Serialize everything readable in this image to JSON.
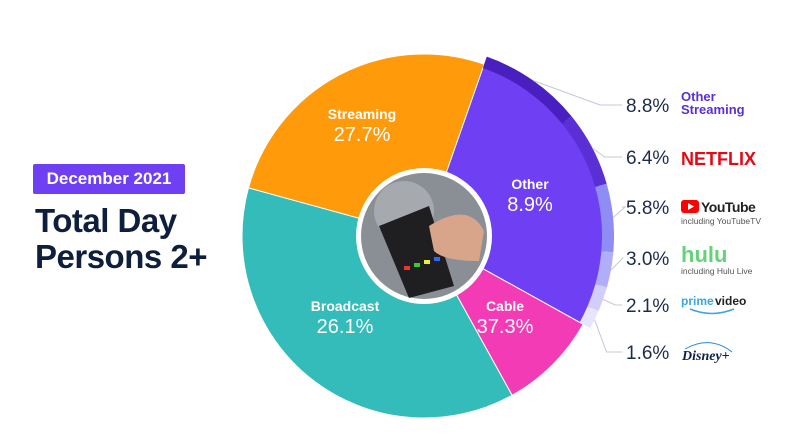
{
  "header": {
    "badge": "December 2021",
    "title_line1": "Total Day",
    "title_line2": "Persons 2+"
  },
  "chart_data": {
    "type": "pie",
    "variant": "donut with streaming breakdown ring",
    "categories": [
      "Streaming",
      "Other",
      "Cable",
      "Broadcast"
    ],
    "values": [
      27.7,
      8.9,
      37.3,
      26.1
    ],
    "value_labels": [
      "27.7%",
      "8.9%",
      "37.3%",
      "26.1%"
    ],
    "colors": [
      "#6e3ff3",
      "#f23bb5",
      "#33bcb9",
      "#ff9a0a"
    ],
    "streaming_breakdown": {
      "items": [
        {
          "name": "Other Streaming",
          "value": 8.8,
          "label": "8.8%",
          "color": "#4a1fc0"
        },
        {
          "name": "NETFLIX",
          "value": 6.4,
          "label": "6.4%",
          "color": "#5a2fd6"
        },
        {
          "name": "YouTube",
          "sub": "including YouTubeTV",
          "value": 5.8,
          "label": "5.8%",
          "color": "#8e8cf5"
        },
        {
          "name": "hulu",
          "sub": "including Hulu Live",
          "value": 3.0,
          "label": "3.0%",
          "color": "#b2adfa"
        },
        {
          "name": "prime video",
          "value": 2.1,
          "label": "2.1%",
          "color": "#d3cdfb"
        },
        {
          "name": "Disney+",
          "value": 1.6,
          "label": "1.6%",
          "color": "#e7e4fd"
        }
      ]
    }
  }
}
